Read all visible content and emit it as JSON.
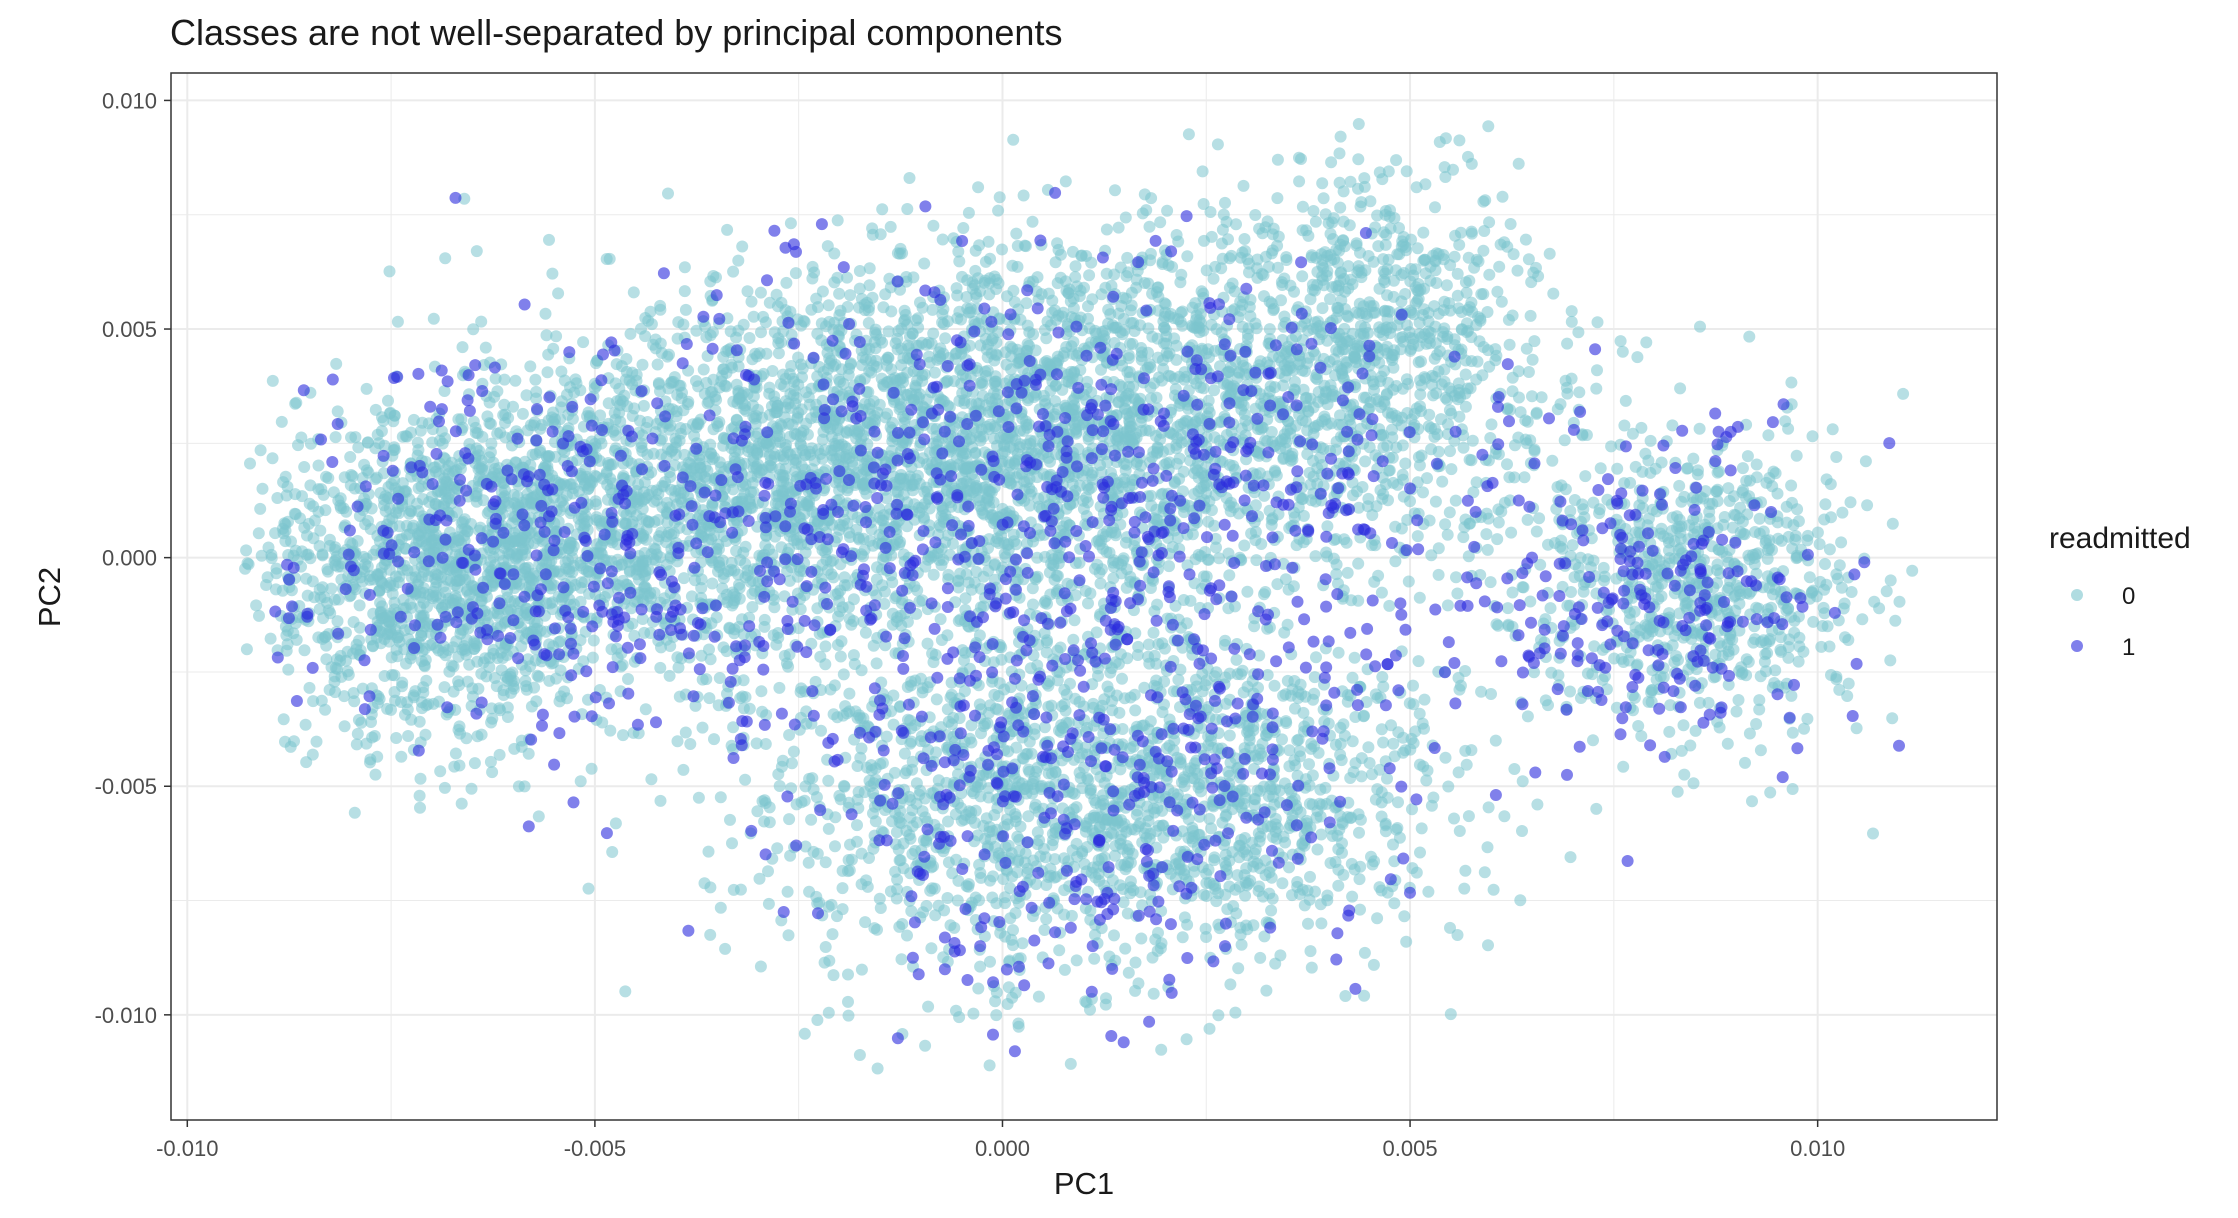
{
  "chart_data": {
    "type": "scatter",
    "title": "Classes are not well-separated by principal components",
    "xlabel": "PC1",
    "ylabel": "PC2",
    "xlim": [
      -0.0102,
      0.0122
    ],
    "ylim": [
      -0.0123,
      0.0106
    ],
    "x_ticks": [
      -0.01,
      -0.005,
      0.0,
      0.005,
      0.01
    ],
    "x_tick_labels": [
      "-0.010",
      "-0.005",
      "0.000",
      "0.005",
      "0.010"
    ],
    "y_ticks": [
      -0.01,
      -0.005,
      0.0,
      0.005,
      0.01
    ],
    "y_tick_labels": [
      "-0.010",
      "-0.005",
      "0.000",
      "0.005",
      "0.010"
    ],
    "grid": true,
    "legend": {
      "title": "readmitted",
      "position": "right",
      "entries": [
        "0",
        "1"
      ]
    },
    "series": [
      {
        "name": "0",
        "color": "#7cc5cd",
        "point_count_approx": 70000,
        "distribution": {
          "clusters": [
            {
              "center": [
                -0.007,
                -0.0005
              ],
              "sd": [
                0.0011,
                0.0018
              ],
              "weight": 0.12
            },
            {
              "center": [
                -0.0045,
                0.001
              ],
              "sd": [
                0.0016,
                0.0019
              ],
              "weight": 0.16
            },
            {
              "center": [
                -0.001,
                0.0025
              ],
              "sd": [
                0.0017,
                0.002
              ],
              "weight": 0.18
            },
            {
              "center": [
                0.002,
                0.003
              ],
              "sd": [
                0.0017,
                0.0021
              ],
              "weight": 0.14
            },
            {
              "center": [
                0.0045,
                0.0045
              ],
              "sd": [
                0.0011,
                0.002
              ],
              "weight": 0.09
            },
            {
              "center": [
                0.0,
                -0.005
              ],
              "sd": [
                0.0018,
                0.0022
              ],
              "weight": 0.14
            },
            {
              "center": [
                0.003,
                -0.005
              ],
              "sd": [
                0.0014,
                0.0018
              ],
              "weight": 0.08
            },
            {
              "center": [
                0.0085,
                -0.0005
              ],
              "sd": [
                0.0011,
                0.0017
              ],
              "weight": 0.09
            }
          ],
          "x_range": [
            -0.0093,
            0.0112
          ],
          "y_range": [
            -0.0116,
            0.0095
          ]
        }
      },
      {
        "name": "1",
        "color": "#2b2bde",
        "point_count_approx": 1600,
        "distribution": {
          "clusters": [
            {
              "center": [
                -0.0055,
                0.0
              ],
              "sd": [
                0.0018,
                0.0022
              ],
              "weight": 0.22
            },
            {
              "center": [
                -0.001,
                0.001
              ],
              "sd": [
                0.0018,
                0.0028
              ],
              "weight": 0.22
            },
            {
              "center": [
                0.0025,
                0.001
              ],
              "sd": [
                0.0018,
                0.0028
              ],
              "weight": 0.22
            },
            {
              "center": [
                0.001,
                -0.006
              ],
              "sd": [
                0.0017,
                0.0022
              ],
              "weight": 0.18
            },
            {
              "center": [
                0.008,
                -0.001
              ],
              "sd": [
                0.0012,
                0.0018
              ],
              "weight": 0.16
            }
          ],
          "x_range": [
            -0.009,
            0.011
          ],
          "y_range": [
            -0.0112,
            0.008
          ]
        }
      }
    ]
  }
}
